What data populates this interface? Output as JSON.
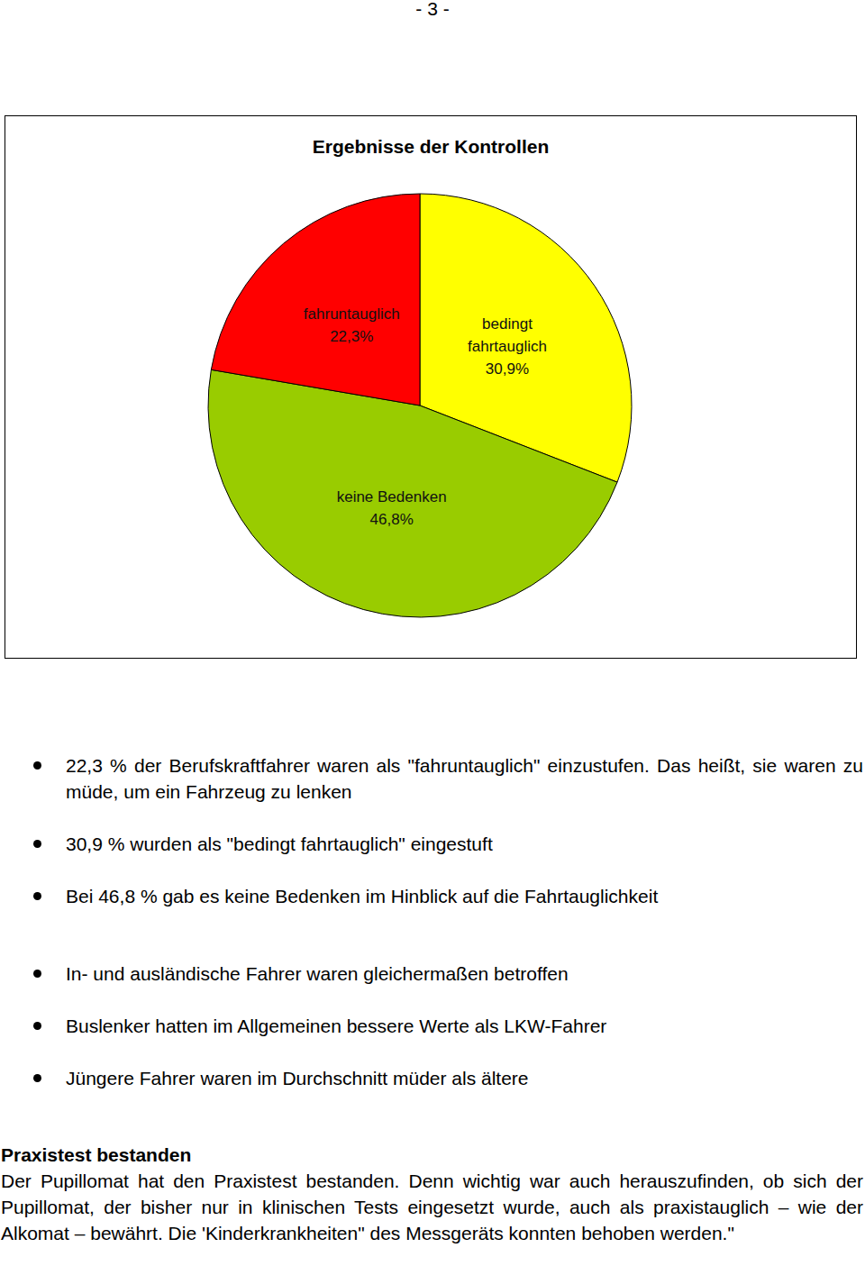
{
  "page_number": "- 3 -",
  "chart_data": {
    "type": "pie",
    "title": "Ergebnisse der Kontrollen",
    "categories": [
      "bedingt fahrtauglich",
      "keine Bedenken",
      "fahruntauglich"
    ],
    "values": [
      30.9,
      46.8,
      22.3
    ],
    "value_labels": [
      "30,9%",
      "46,8%",
      "22,3%"
    ],
    "colors": [
      "#ffff00",
      "#99cc00",
      "#ff0000"
    ],
    "data_labels": true
  },
  "bullets": [
    "22,3 % der Berufskraftfahrer waren als \"fahruntauglich\" einzustufen. Das heißt, sie waren zu müde, um ein Fahrzeug zu lenken",
    "30,9 % wurden als \"bedingt fahrtauglich\" eingestuft",
    "Bei 46,8 % gab es keine Bedenken im Hinblick auf die Fahrtauglichkeit",
    "In- und ausländische Fahrer waren gleichermaßen betroffen",
    "Buslenker hatten im Allgemeinen bessere Werte als LKW-Fahrer",
    "Jüngere Fahrer waren im Durchschnitt müder als ältere"
  ],
  "section": {
    "heading": "Praxistest bestanden",
    "text": "Der Pupillomat hat den Praxistest bestanden. Denn wichtig war auch herauszufinden, ob sich der Pupillomat, der bisher nur in klinischen Tests eingesetzt wurde, auch als praxistauglich – wie der Alkomat – bewährt. Die 'Kinderkrankheiten\" des Messgeräts konnten behoben werden.\""
  }
}
